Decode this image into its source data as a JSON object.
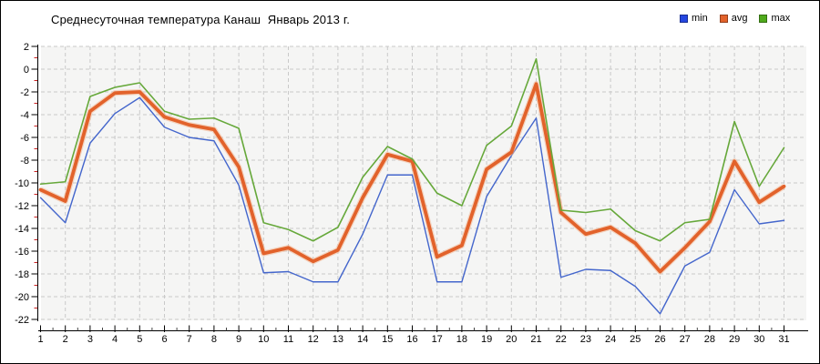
{
  "window": {
    "background": "#ffffff",
    "border_color": "#000000"
  },
  "header": {
    "title": "Среднесуточная температура Канаш  Январь 2013 г."
  },
  "legend": {
    "position": "top-right",
    "items": [
      {
        "label": "min",
        "color": "#2547e0"
      },
      {
        "label": "avg",
        "color": "#e2622b"
      },
      {
        "label": "max",
        "color": "#4faa1c"
      }
    ]
  },
  "chart_data": {
    "type": "line",
    "title": "Среднесуточная температура Канаш  Январь 2013 г.",
    "xlabel": "",
    "ylabel": "",
    "x": [
      1,
      2,
      3,
      4,
      5,
      6,
      7,
      8,
      9,
      10,
      11,
      12,
      13,
      14,
      15,
      16,
      17,
      18,
      19,
      20,
      21,
      22,
      23,
      24,
      25,
      26,
      27,
      28,
      29,
      30,
      31
    ],
    "ylim": [
      -22,
      2
    ],
    "ytick_step": 2,
    "grid": true,
    "plot_background": "#f5f5f4",
    "gridline_color": "#c9c9c9",
    "axis_color": "#000000",
    "minor_tick_color": "#cc2222",
    "series": [
      {
        "name": "min",
        "color": "#4466cc",
        "width": 1.4,
        "values": [
          -11.3,
          -13.5,
          -6.5,
          -3.9,
          -2.5,
          -5.1,
          -6.0,
          -6.3,
          -10.2,
          -17.9,
          -17.8,
          -18.7,
          -18.7,
          -14.5,
          -9.3,
          -9.3,
          -18.7,
          -18.7,
          -11.2,
          -7.6,
          -4.3,
          -18.3,
          -17.6,
          -17.7,
          -19.1,
          -21.5,
          -17.3,
          -16.1,
          -10.6,
          -13.6,
          -13.3
        ]
      },
      {
        "name": "avg",
        "color": "#e2622b",
        "width": 3.8,
        "values": [
          -10.6,
          -11.6,
          -3.7,
          -2.1,
          -2.0,
          -4.2,
          -4.9,
          -5.3,
          -8.6,
          -16.2,
          -15.7,
          -16.9,
          -15.9,
          -11.3,
          -7.5,
          -8.1,
          -16.5,
          -15.5,
          -8.8,
          -7.3,
          -1.3,
          -12.6,
          -14.5,
          -13.9,
          -15.3,
          -17.8,
          -15.7,
          -13.4,
          -8.1,
          -11.7,
          -10.3
        ]
      },
      {
        "name": "max",
        "color": "#66a83a",
        "width": 1.6,
        "values": [
          -10.1,
          -9.9,
          -2.4,
          -1.6,
          -1.2,
          -3.7,
          -4.4,
          -4.3,
          -5.2,
          -13.5,
          -14.1,
          -15.1,
          -13.9,
          -9.5,
          -6.8,
          -7.9,
          -10.9,
          -12.0,
          -6.7,
          -5.0,
          0.9,
          -12.4,
          -12.6,
          -12.3,
          -14.2,
          -15.1,
          -13.5,
          -13.2,
          -4.6,
          -10.3,
          -6.9
        ]
      }
    ]
  }
}
